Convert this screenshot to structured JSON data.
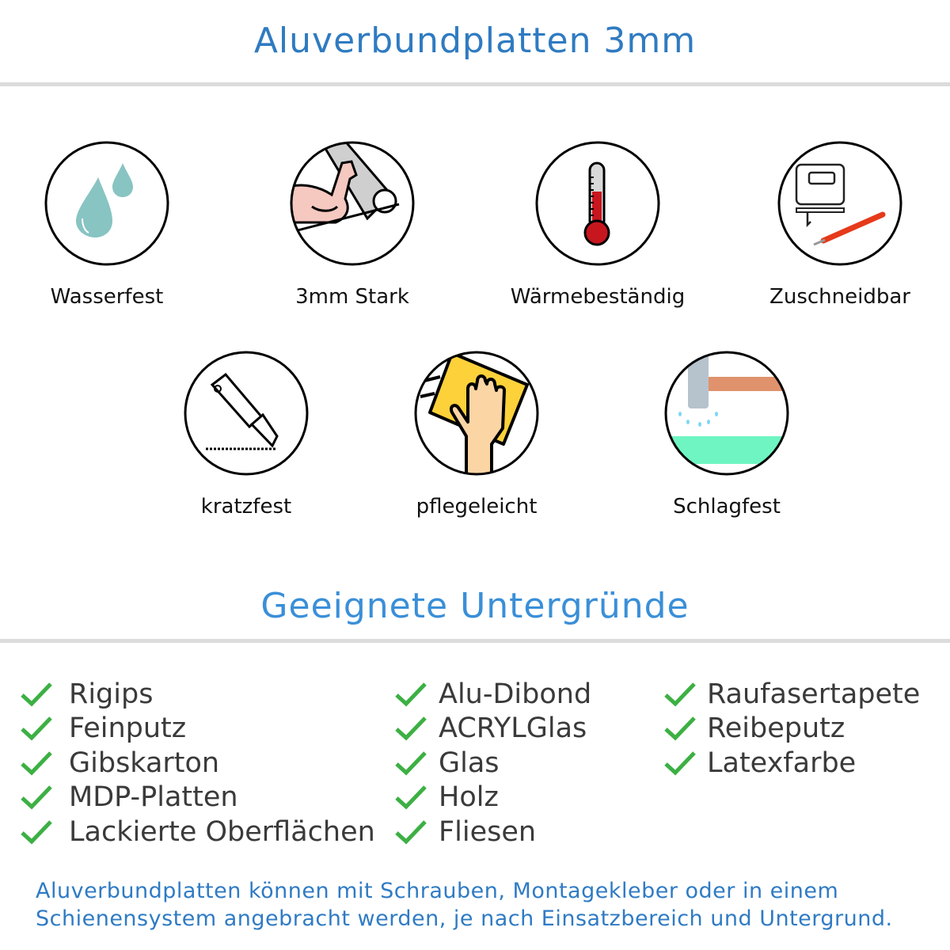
{
  "header": {
    "title": "Aluverbundplatten 3mm"
  },
  "features": [
    {
      "label": "Wasserfest",
      "icon": "water-drops-icon"
    },
    {
      "label": "3mm Stark",
      "icon": "flexed-arm-icon"
    },
    {
      "label": "Wärmebeständig",
      "icon": "thermometer-icon"
    },
    {
      "label": "Zuschneidbar",
      "icon": "jigsaw-knife-icon"
    },
    {
      "label": "kratzfest",
      "icon": "cutter-knife-icon"
    },
    {
      "label": "pflegeleicht",
      "icon": "cleaning-hand-icon"
    },
    {
      "label": "Schlagfest",
      "icon": "hammer-icon"
    }
  ],
  "surfaces": {
    "title": "Geeignete Untergründe",
    "check_color": "#3cb043",
    "columns": [
      [
        "Rigips",
        "Feinputz",
        "Gibskarton",
        "MDP-Platten",
        "Lackierte Oberflächen"
      ],
      [
        "Alu-Dibond",
        "ACRYLGlas",
        "Glas",
        "Holz",
        "Fliesen"
      ],
      [
        "Raufasertapete",
        "Reibeputz",
        "Latexfarbe"
      ]
    ]
  },
  "footer": {
    "line1": "Aluverbundplatten können mit Schrauben, Montagekleber oder in einem",
    "line2": "Schienensystem angebracht werden, je nach Einsatzbereich und Untergrund."
  },
  "colors": {
    "title": "#2f7bc1",
    "subtitle": "#3a8fd8",
    "text": "#3a3a3a"
  }
}
